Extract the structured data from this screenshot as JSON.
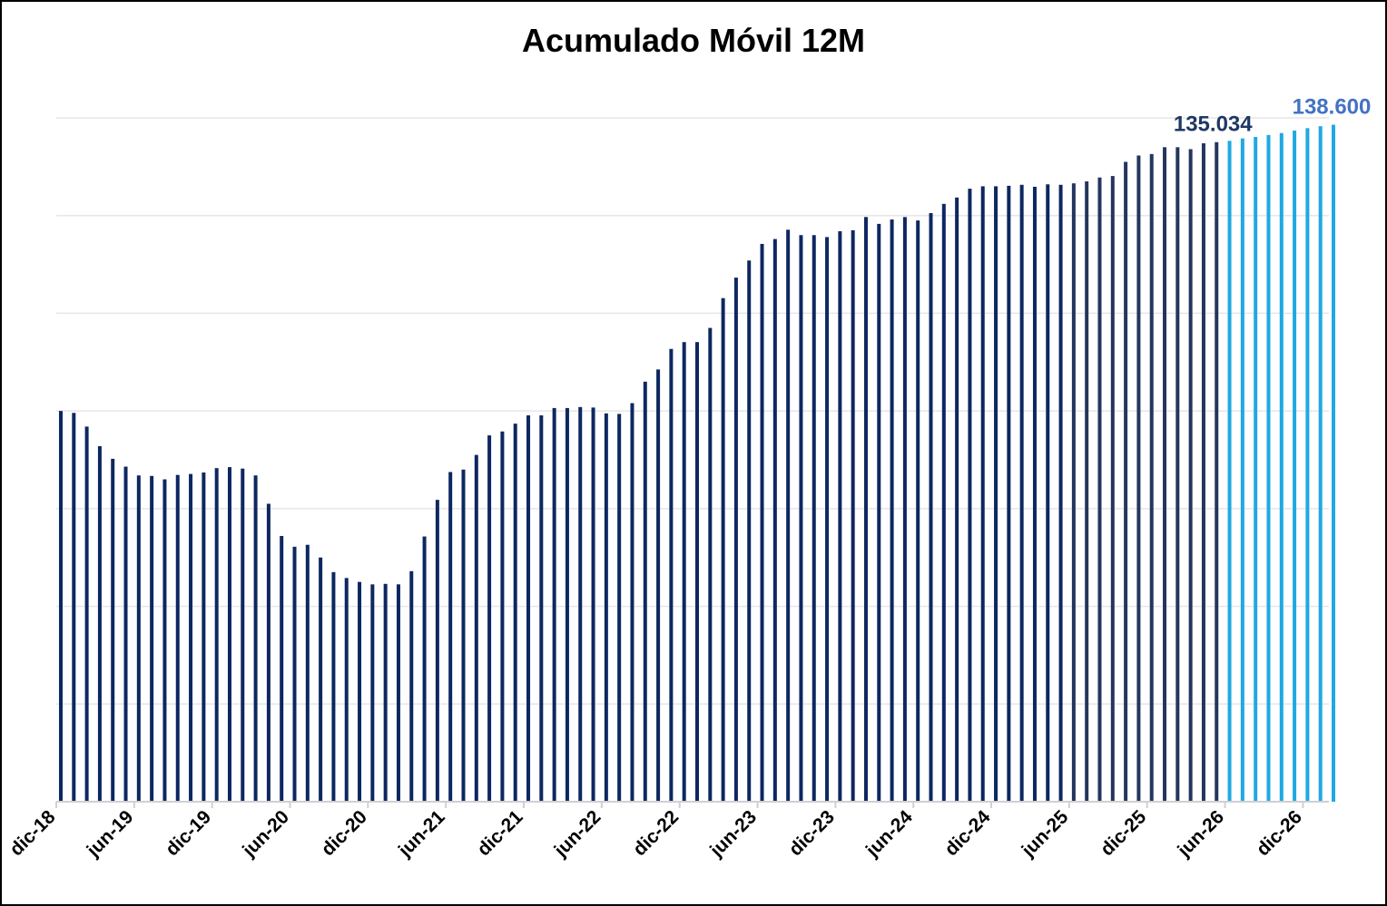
{
  "chart_data": {
    "type": "bar",
    "title": "Acumulado Móvil 12M",
    "xlabel": "",
    "ylabel": "",
    "ylim": [
      0,
      140000
    ],
    "y_gridline_step": 20000,
    "y_tick_labels_shown": false,
    "x_tick_labels": [
      "dic-18",
      "jun-19",
      "dic-19",
      "jun-20",
      "dic-20",
      "jun-21",
      "dic-21",
      "jun-22",
      "dic-22",
      "jun-23",
      "dic-23",
      "jun-24",
      "dic-24",
      "jun-25",
      "dic-25",
      "jun-26",
      "dic-26"
    ],
    "colors": {
      "actual": "#0d2761",
      "recent": "#24355e",
      "forecast": "#1fa9e1",
      "actual_label": "#1f3864",
      "forecast_label": "#4472c4",
      "grid": "#e6e6e6"
    },
    "series": [
      {
        "type": "actual",
        "start": "dic-18",
        "values": [
          80000,
          79600,
          76800,
          72800,
          70200,
          68600,
          66800,
          66700,
          66000,
          66900,
          67100,
          67400,
          68300,
          68500,
          68200,
          66800,
          61000,
          54400,
          52200,
          52600,
          50000,
          47000,
          45800,
          45000,
          44500,
          44600,
          44500,
          47200,
          54300,
          61800,
          67500,
          68000,
          71000,
          75000,
          75800,
          77400,
          79100,
          79100,
          80600,
          80600,
          80800,
          80700,
          79500,
          79400,
          81600,
          86000,
          88500,
          92700,
          94100,
          94100,
          97000,
          103100,
          107300,
          110800,
          114200,
          115200,
          117100,
          116000,
          116000,
          115600,
          116800,
          117000,
          119700,
          118300,
          119200,
          119700,
          119000,
          120500,
          122400,
          123700,
          125500,
          126000,
          126000,
          126100,
          126300,
          125900,
          126400,
          126300,
          126600,
          127000,
          127800,
          128100,
          131000,
          132300,
          132600,
          134000,
          134000,
          133600,
          134800,
          135034
        ]
      },
      {
        "type": "forecast",
        "values": [
          135300,
          135800,
          136100,
          136500,
          136900,
          137400,
          137900,
          138300,
          138600
        ]
      }
    ],
    "recent_actual_count": 12,
    "data_labels": [
      {
        "series": "actual",
        "index": "last",
        "text": "135.034"
      },
      {
        "series": "forecast",
        "index": "last",
        "text": "138.600"
      }
    ]
  }
}
